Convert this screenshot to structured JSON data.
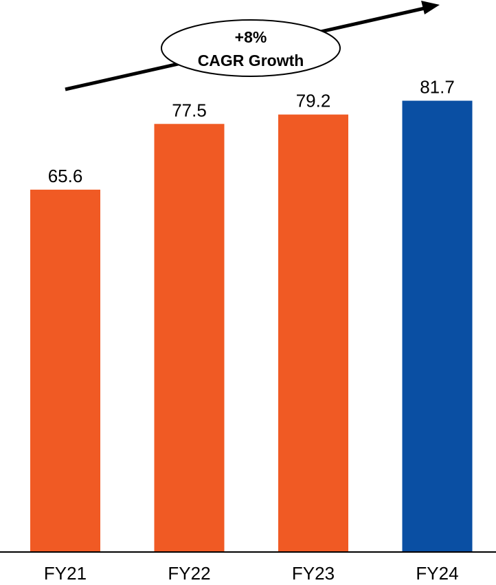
{
  "chart_data": {
    "type": "bar",
    "categories": [
      "FY21",
      "FY22",
      "FY23",
      "FY24"
    ],
    "values": [
      65.6,
      77.5,
      79.2,
      81.7
    ],
    "value_labels": [
      "65.6",
      "77.5",
      "79.2",
      "81.7"
    ],
    "bar_colors": [
      "#F05A24",
      "#F05A24",
      "#F05A24",
      "#0A4FA3"
    ],
    "title": "",
    "xlabel": "",
    "ylabel": "",
    "ylim": [
      0,
      85
    ],
    "grid": false,
    "legend": "none",
    "annotation": {
      "line1": "+8%",
      "line2": "CAGR Growth"
    }
  }
}
